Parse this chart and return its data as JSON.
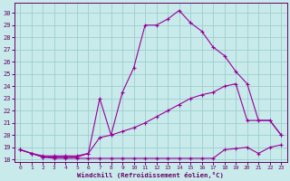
{
  "xlabel": "Windchill (Refroidissement éolien,°C)",
  "xlim": [
    -0.5,
    23.5
  ],
  "ylim": [
    17.8,
    30.8
  ],
  "yticks": [
    18,
    19,
    20,
    21,
    22,
    23,
    24,
    25,
    26,
    27,
    28,
    29,
    30
  ],
  "xticks": [
    0,
    1,
    2,
    3,
    4,
    5,
    6,
    7,
    8,
    9,
    10,
    11,
    12,
    13,
    14,
    15,
    16,
    17,
    18,
    19,
    20,
    21,
    22,
    23
  ],
  "bg_color": "#c8eaea",
  "line_color": "#990099",
  "grid_color": "#9ecece",
  "curve_main_x": [
    0,
    1,
    2,
    3,
    4,
    5,
    6,
    7,
    8,
    9,
    10,
    11,
    12,
    13,
    14,
    15,
    16,
    17,
    18,
    19,
    20,
    21,
    22,
    23
  ],
  "curve_main_y": [
    18.8,
    18.5,
    18.2,
    18.2,
    18.2,
    18.2,
    18.5,
    23.0,
    20.0,
    23.5,
    25.5,
    29.0,
    29.0,
    29.5,
    30.2,
    29.2,
    28.5,
    27.2,
    26.5,
    25.2,
    24.2,
    21.2,
    21.2,
    20.0
  ],
  "curve_diag_x": [
    0,
    1,
    2,
    3,
    4,
    5,
    6,
    7,
    8,
    9,
    10,
    11,
    12,
    13,
    14,
    15,
    16,
    17,
    18,
    19,
    20,
    21,
    22,
    23
  ],
  "curve_diag_y": [
    18.8,
    18.5,
    18.3,
    18.3,
    18.3,
    18.3,
    18.5,
    19.8,
    20.0,
    20.3,
    20.6,
    21.0,
    21.5,
    22.0,
    22.5,
    23.0,
    23.3,
    23.5,
    24.0,
    24.2,
    21.2,
    21.2,
    21.2,
    20.0
  ],
  "curve_flat_x": [
    0,
    1,
    2,
    3,
    4,
    5,
    6,
    7,
    8,
    9,
    10,
    11,
    12,
    13,
    14,
    15,
    16,
    17,
    18,
    19,
    20,
    21,
    22,
    23
  ],
  "curve_flat_y": [
    18.8,
    18.5,
    18.2,
    18.1,
    18.1,
    18.1,
    18.1,
    18.1,
    18.1,
    18.1,
    18.1,
    18.1,
    18.1,
    18.1,
    18.1,
    18.1,
    18.1,
    18.1,
    18.8,
    18.9,
    19.0,
    18.5,
    19.0,
    19.2
  ]
}
